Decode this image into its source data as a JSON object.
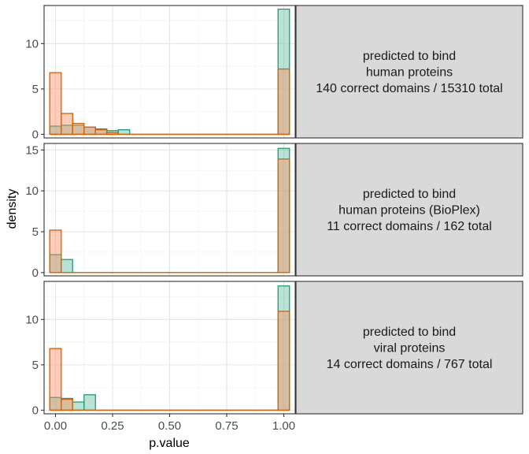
{
  "chart_data": {
    "type": "histogram",
    "xlabel": "p.value",
    "ylabel": "density",
    "x_ticks": [
      "0.00",
      "0.25",
      "0.50",
      "0.75",
      "1.00"
    ],
    "x_tick_values": [
      0,
      0.25,
      0.5,
      0.75,
      1
    ],
    "xlim": [
      -0.05,
      1.05
    ],
    "bin_width": 0.05,
    "bin_centers": [
      0,
      0.05,
      0.1,
      0.15,
      0.2,
      0.25,
      0.3,
      0.35,
      0.4,
      0.45,
      0.5,
      0.55,
      0.6,
      0.65,
      0.7,
      0.75,
      0.8,
      0.85,
      0.9,
      0.95,
      1.0
    ],
    "series_colors": {
      "teal": {
        "fill": "#66c2a5",
        "stroke": "#1b9e77"
      },
      "orange": {
        "fill": "#fc8d62",
        "stroke": "#d95f02"
      }
    },
    "panels": [
      {
        "strip_lines": [
          "predicted to bind",
          "human proteins",
          "140 correct domains / 15310 total"
        ],
        "ylim": [
          -0.4,
          14.2
        ],
        "y_ticks": [
          0,
          5,
          10
        ],
        "teal": [
          0.9,
          1.0,
          1.0,
          0.8,
          0.6,
          0.4,
          0.5,
          0,
          0,
          0,
          0,
          0,
          0,
          0,
          0,
          0,
          0,
          0,
          0,
          0,
          13.8
        ],
        "orange": [
          6.8,
          2.3,
          1.2,
          0.8,
          0.5,
          0.2,
          0,
          0,
          0,
          0,
          0,
          0,
          0,
          0,
          0,
          0,
          0,
          0,
          0,
          0,
          7.2
        ]
      },
      {
        "strip_lines": [
          "predicted to bind",
          "human proteins (BioPlex)",
          "11 correct domains / 162 total"
        ],
        "ylim": [
          -0.4,
          15.8
        ],
        "y_ticks": [
          0,
          5,
          10,
          15
        ],
        "teal": [
          2.2,
          1.6,
          0,
          0,
          0,
          0,
          0,
          0,
          0,
          0,
          0,
          0,
          0,
          0,
          0,
          0,
          0,
          0,
          0,
          0,
          15.2
        ],
        "orange": [
          5.2,
          0,
          0,
          0,
          0,
          0,
          0,
          0,
          0,
          0,
          0,
          0,
          0,
          0,
          0,
          0,
          0,
          0,
          0,
          0,
          13.9
        ]
      },
      {
        "strip_lines": [
          "predicted to bind",
          "viral proteins",
          "14 correct domains / 767 total"
        ],
        "ylim": [
          -0.4,
          14.2
        ],
        "y_ticks": [
          0,
          5,
          10
        ],
        "teal": [
          1.4,
          1.3,
          0.9,
          1.7,
          0,
          0,
          0,
          0,
          0,
          0,
          0,
          0,
          0,
          0,
          0,
          0,
          0,
          0,
          0,
          0,
          13.7
        ],
        "orange": [
          6.8,
          1.2,
          0,
          0,
          0,
          0,
          0,
          0,
          0,
          0,
          0,
          0,
          0,
          0,
          0,
          0,
          0,
          0,
          0,
          0,
          10.9
        ]
      }
    ]
  }
}
